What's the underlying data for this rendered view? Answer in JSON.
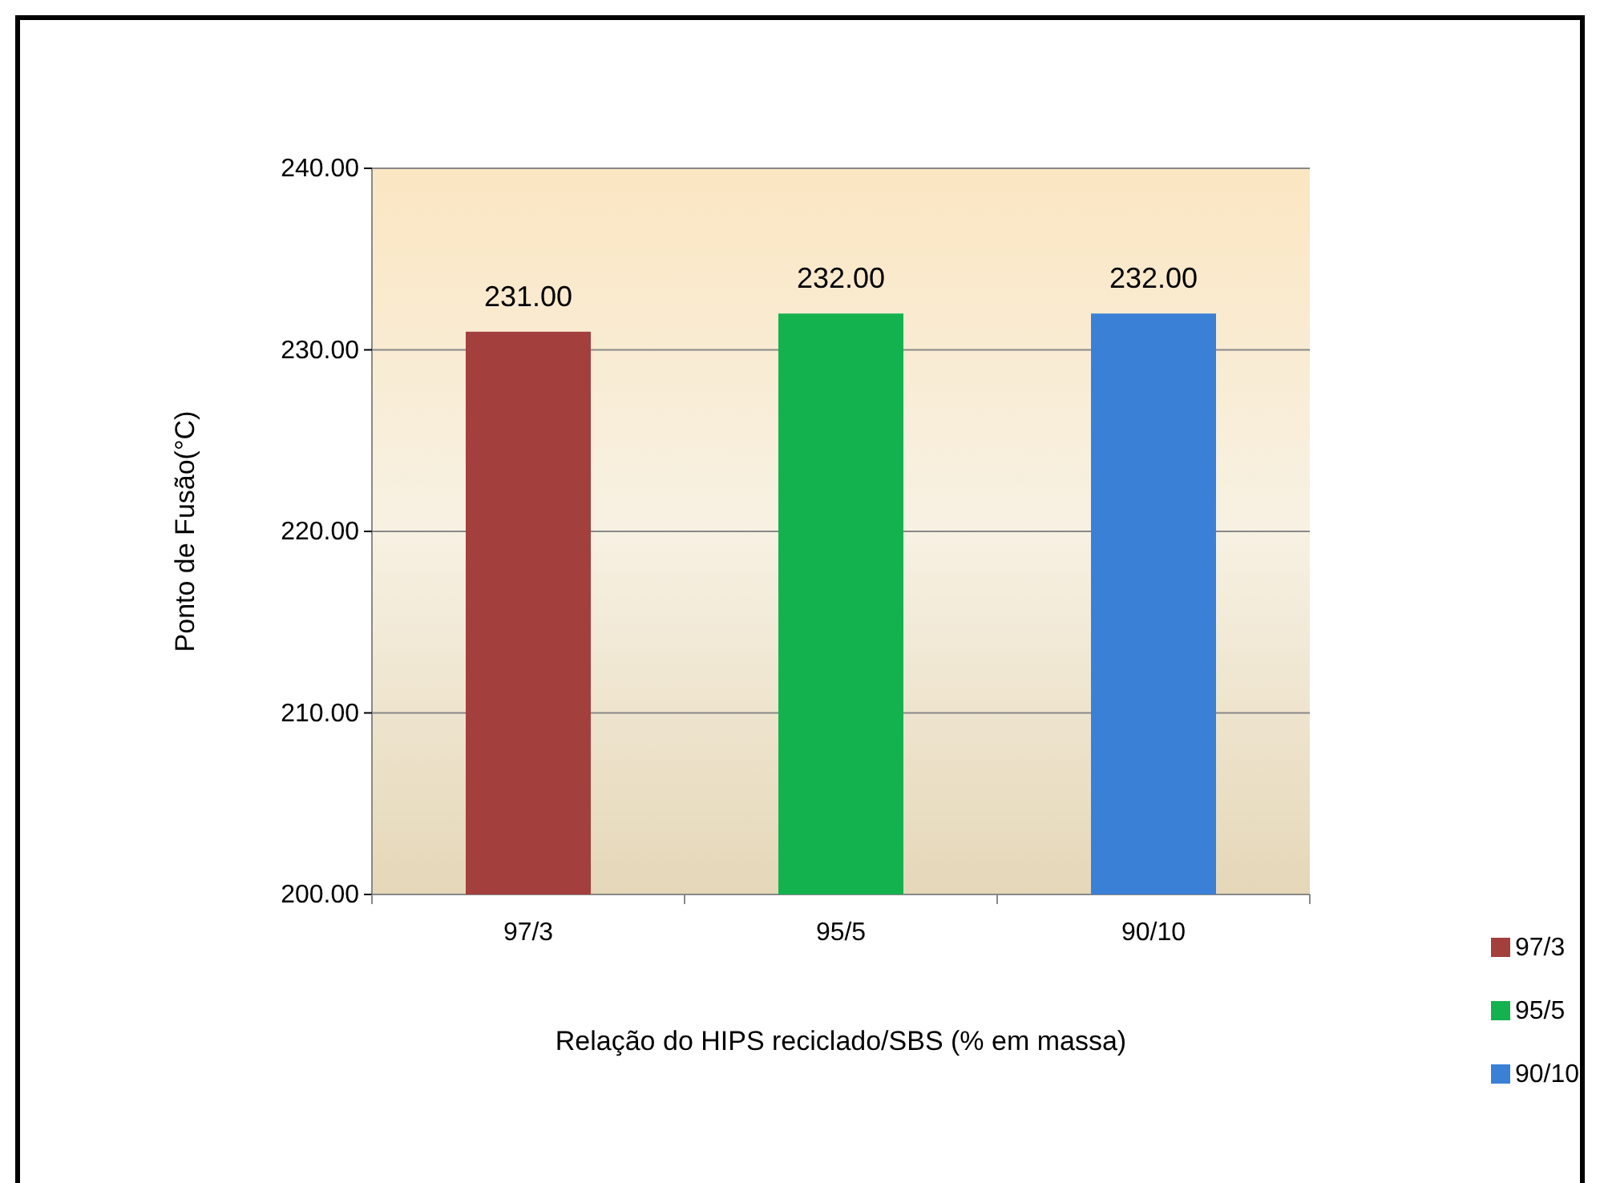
{
  "chart_data": {
    "type": "bar",
    "xlabel": "Relação do HIPS reciclado/SBS (% em massa)",
    "ylabel": "Ponto de Fusão(°C)",
    "categories": [
      "97/3",
      "95/5",
      "90/10"
    ],
    "series": [
      {
        "name": "97/3",
        "color": "#a33f3c",
        "values": [
          231,
          null,
          null
        ],
        "value_labels": [
          "231.00",
          null,
          null
        ]
      },
      {
        "name": "95/5",
        "color": "#14b24f",
        "values": [
          null,
          232,
          null
        ],
        "value_labels": [
          null,
          "232.00",
          null
        ]
      },
      {
        "name": "90/10",
        "color": "#3a80d6",
        "values": [
          null,
          null,
          232
        ],
        "value_labels": [
          null,
          null,
          "232.00"
        ]
      }
    ],
    "ylim": [
      200,
      240
    ],
    "yticks": [
      {
        "value": 200,
        "label": "200.00"
      },
      {
        "value": 210,
        "label": "210.00"
      },
      {
        "value": 220,
        "label": "220.00"
      },
      {
        "value": 230,
        "label": "230.00"
      },
      {
        "value": 240,
        "label": "240.00"
      }
    ],
    "grid": "y",
    "legend": "right"
  }
}
